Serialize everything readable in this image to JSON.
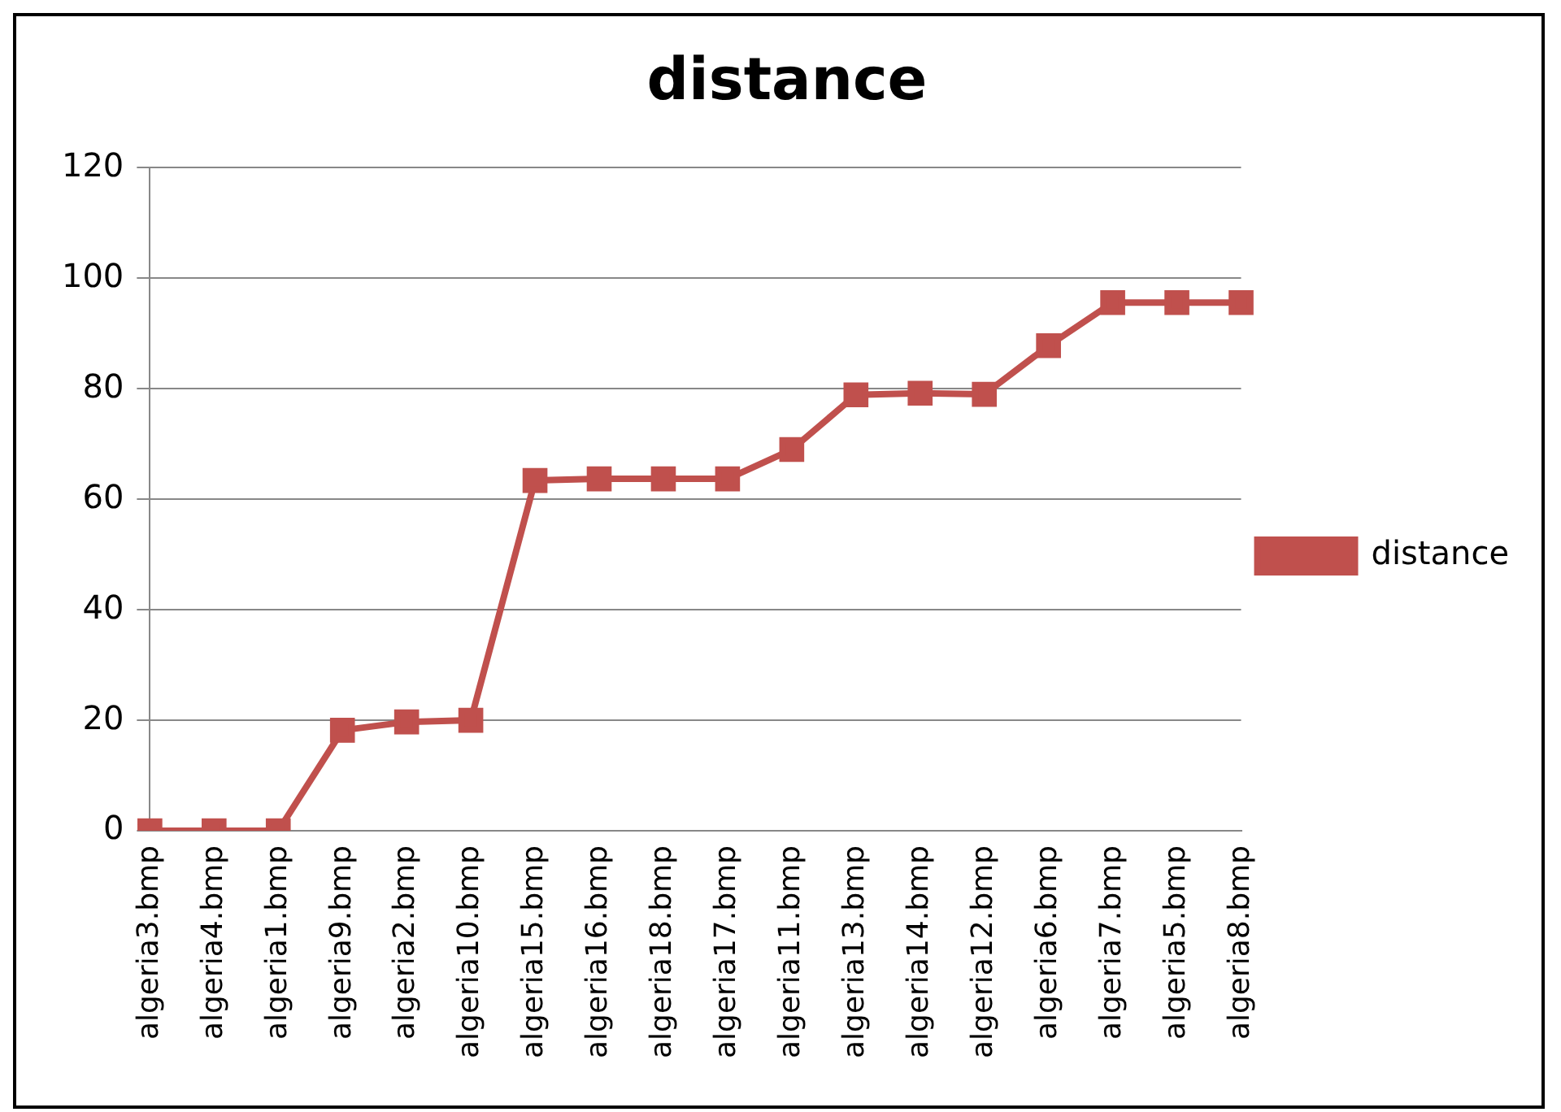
{
  "chart_data": {
    "type": "line",
    "title": "distance",
    "categories": [
      "algeria3.bmp",
      "algeria4.bmp",
      "algeria1.bmp",
      "algeria9.bmp",
      "algeria2.bmp",
      "algeria10.bmp",
      "algeria15.bmp",
      "algeria16.bmp",
      "algeria18.bmp",
      "algeria17.bmp",
      "algeria11.bmp",
      "algeria13.bmp",
      "algeria14.bmp",
      "algeria12.bmp",
      "algeria6.bmp",
      "algeria7.bmp",
      "algeria5.bmp",
      "algeria8.bmp"
    ],
    "series": [
      {
        "name": "distance",
        "color": "#c0504d",
        "values": [
          0,
          0,
          0,
          18.2,
          19.7,
          20,
          63.4,
          63.7,
          63.7,
          63.7,
          69,
          78.9,
          79.2,
          79,
          87.8,
          95.6,
          95.6,
          95.6
        ]
      }
    ],
    "ylim": [
      0,
      120
    ],
    "yticks": [
      0,
      20,
      40,
      60,
      80,
      100,
      120
    ],
    "grid": "y",
    "legend": "right",
    "marker": "square",
    "line_style": "solid"
  }
}
